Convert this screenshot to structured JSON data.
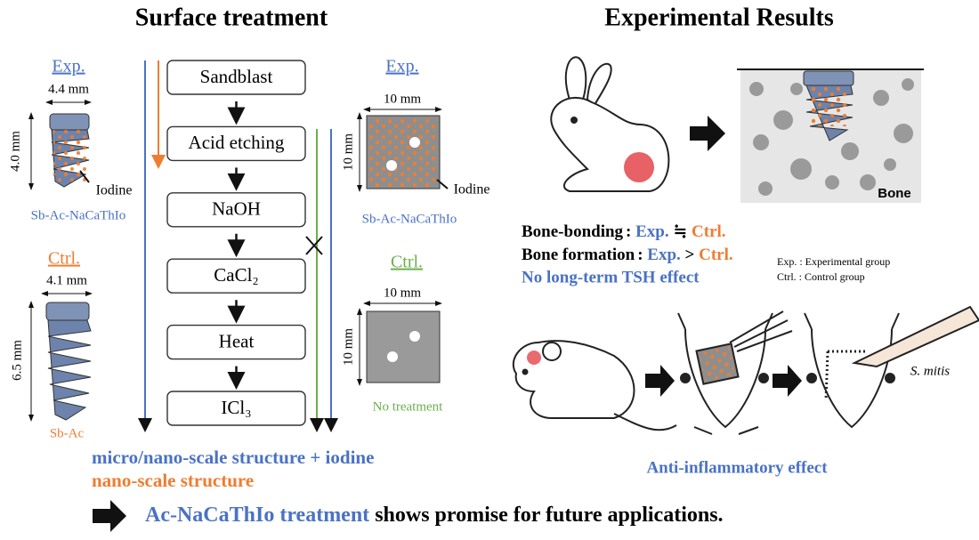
{
  "header": {
    "left_title": "Surface treatment",
    "right_title": "Experimental Results"
  },
  "implants": {
    "exp": {
      "label": "Exp.",
      "width": "4.4 mm",
      "height": "4.0 mm",
      "pointer": "Iodine",
      "name": "Sb-Ac-NaCaThIo"
    },
    "ctrl": {
      "label": "Ctrl.",
      "width": "4.1 mm",
      "height": "6.5 mm",
      "name": "Sb-Ac"
    }
  },
  "steps": [
    "Sandblast",
    "Acid etching",
    "NaOH",
    "CaCl₂",
    "Heat",
    "ICl₃"
  ],
  "plates": {
    "exp": {
      "label": "Exp.",
      "width": "10 mm",
      "height": "10 mm",
      "pointer": "Iodine",
      "name": "Sb-Ac-NaCaThIo"
    },
    "ctrl": {
      "label": "Ctrl.",
      "width": "10 mm",
      "height": "10 mm",
      "name": "No treatment"
    }
  },
  "legend": [
    "micro/nano-scale structure + iodine",
    "nano-scale structure"
  ],
  "results": {
    "bone_label": "Bone",
    "bone_bonding": {
      "label": "Bone-bonding",
      "separator": ":",
      "exp": "Exp.",
      "relation": "≒",
      "ctrl": "Ctrl."
    },
    "bone_formation": {
      "label": "Bone formation",
      "separator": ":",
      "exp": "Exp.",
      "relation": ">",
      "ctrl": "Ctrl."
    },
    "tsh": "No long-term TSH effect",
    "abbreviations": [
      "Exp. : Experimental group",
      "Ctrl. : Control group"
    ],
    "bacteria": "S. mitis",
    "anti_inflammatory": "Anti-inflammatory effect"
  },
  "conclusion": {
    "highlight": "Ac-NaCaThIo treatment",
    "rest": "shows promise for future applications."
  }
}
